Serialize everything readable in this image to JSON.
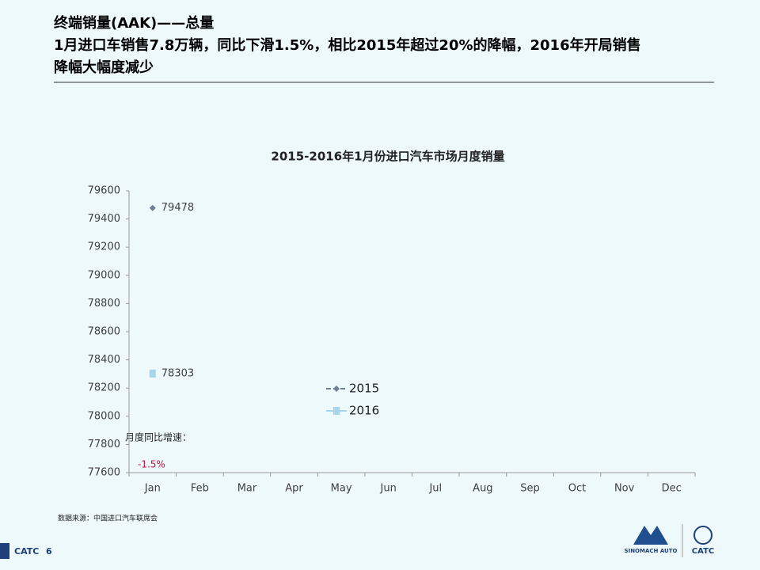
{
  "header": {
    "lines": [
      "终端销量(AAK)——总量",
      "1月进口车销售7.8万辆，同比下滑1.5%，相比2015年超过20%的降幅，2016年开局销售",
      "降幅大幅度减少"
    ]
  },
  "chart_data": {
    "type": "line",
    "title": "2015-2016年1月份进口汽车市场月度销量",
    "categories": [
      "Jan",
      "Feb",
      "Mar",
      "Apr",
      "May",
      "Jun",
      "Jul",
      "Aug",
      "Sep",
      "Oct",
      "Nov",
      "Dec"
    ],
    "series": [
      {
        "name": "2015",
        "color": "#6f7f95",
        "marker": "diamond",
        "values": [
          79478,
          null,
          null,
          null,
          null,
          null,
          null,
          null,
          null,
          null,
          null,
          null
        ]
      },
      {
        "name": "2016",
        "color": "#a8d4ec",
        "marker": "square",
        "values": [
          78303,
          null,
          null,
          null,
          null,
          null,
          null,
          null,
          null,
          null,
          null,
          null
        ]
      }
    ],
    "ylim": [
      77600,
      79600
    ],
    "yticks": [
      77600,
      77800,
      78000,
      78200,
      78400,
      78600,
      78800,
      79000,
      79200,
      79400,
      79600
    ],
    "annotations": [
      "月度同比增速：",
      "-1.5%"
    ]
  },
  "source": "数据来源：中国进口汽车联席会",
  "footer": {
    "label": "CATC",
    "page": "6",
    "logo_left": "SINOMACH AUTO",
    "logo_right": "CATC"
  }
}
